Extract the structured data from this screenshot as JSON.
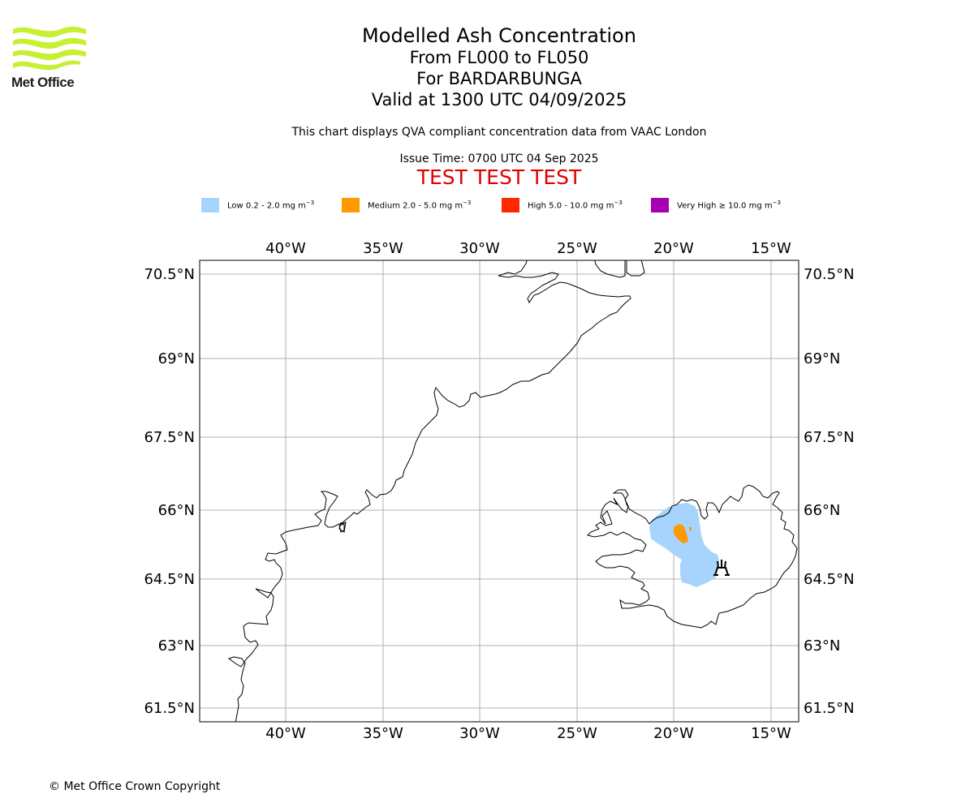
{
  "organization": {
    "name": "Met Office"
  },
  "titles": {
    "main": "Modelled Ash Concentration",
    "levels": "From FL000 to FL050",
    "volcano": "For BARDARBUNGA",
    "valid": "Valid at 1300 UTC 04/09/2025",
    "note": "This chart displays QVA compliant concentration data from VAAC London",
    "issue": "Issue Time: 0700 UTC 04 Sep 2025",
    "test_banner": "TEST TEST TEST"
  },
  "legend": [
    {
      "label": "Low 0.2 - 2.0 mg m",
      "exponent": "−3",
      "color": "#a6d4fc"
    },
    {
      "label": "Medium 2.0 - 5.0 mg m",
      "exponent": "−3",
      "color": "#ff9900"
    },
    {
      "label": "High 5.0 - 10.0 mg m",
      "exponent": "−3",
      "color": "#ff2800"
    },
    {
      "label": "Very High ≥ 10.0 mg m",
      "exponent": "−3",
      "color": "#a600b0"
    }
  ],
  "map": {
    "longitude_ticks": [
      "40°W",
      "35°W",
      "30°W",
      "25°W",
      "20°W",
      "15°W"
    ],
    "latitude_ticks": [
      "70.5°N",
      "69°N",
      "67.5°N",
      "66°N",
      "64.5°N",
      "63°N",
      "61.5°N"
    ],
    "volcano_icon": "volcano-symbol-icon"
  },
  "footer": {
    "copyright": "© Met Office Crown Copyright"
  }
}
